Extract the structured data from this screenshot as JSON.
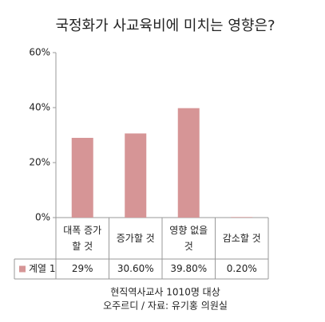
{
  "chart_data": {
    "type": "bar",
    "title": "국정화가 사교육비에 미치는 영향은?",
    "categories": [
      "대폭 증가할 것",
      "증가할 것",
      "영향 없을 것",
      "감소할 것"
    ],
    "series": [
      {
        "name": "계열 1",
        "color": "#d69596",
        "values": [
          29,
          30.6,
          39.8,
          0.2
        ],
        "value_labels": [
          "29%",
          "30.60%",
          "39.80%",
          "0.20%"
        ]
      }
    ],
    "ylim": [
      0,
      60
    ],
    "yticks": [
      {
        "value": 0,
        "label": "0%"
      },
      {
        "value": 20,
        "label": "20%"
      },
      {
        "value": 40,
        "label": "40%"
      },
      {
        "value": 60,
        "label": "60%"
      }
    ],
    "grid": false,
    "notes": [
      "현직역사교사 1010명 대상",
      "오주르디 / 자료: 유기홍 의원실"
    ]
  }
}
